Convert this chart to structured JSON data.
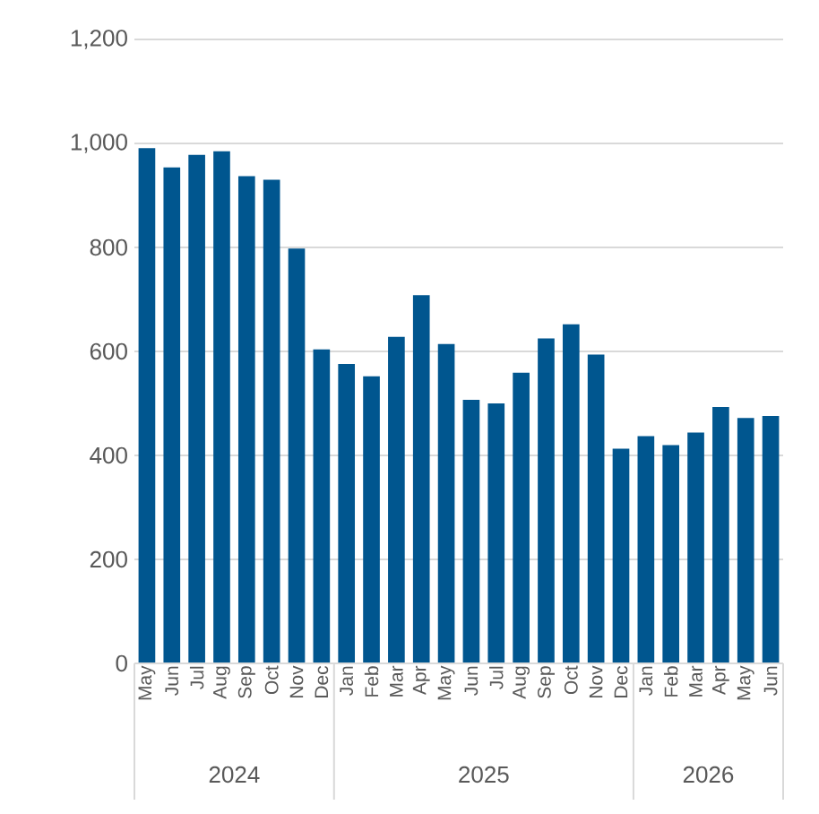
{
  "chart_data": {
    "type": "bar",
    "categories": [
      "May",
      "Jun",
      "Jul",
      "Aug",
      "Sep",
      "Oct",
      "Nov",
      "Dec",
      "Jan",
      "Feb",
      "Mar",
      "Apr",
      "May",
      "Jun",
      "Jul",
      "Aug",
      "Sep",
      "Oct",
      "Nov",
      "Dec",
      "Jan",
      "Feb",
      "Mar",
      "Apr",
      "May",
      "Jun"
    ],
    "values": [
      991,
      954,
      978,
      985,
      937,
      930,
      798,
      604,
      576,
      552,
      628,
      708,
      614,
      507,
      500,
      559,
      625,
      652,
      594,
      413,
      437,
      420,
      444,
      493,
      472,
      476
    ],
    "color": "#00568f",
    "ylim": [
      0,
      1200
    ],
    "yticks": [
      0,
      200,
      400,
      600,
      800,
      {
        "value": 1000,
        "label": "1,000"
      },
      {
        "value": 1200,
        "label": "1,200"
      }
    ],
    "grid": "y",
    "annotations": [
      "2024",
      "2025",
      "2026"
    ]
  }
}
